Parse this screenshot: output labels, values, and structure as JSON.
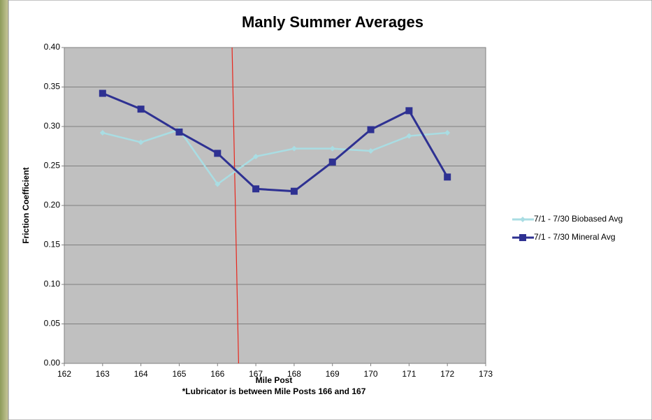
{
  "chart_data": {
    "type": "line",
    "title": "Manly Summer Averages",
    "x_label": "Mile Post",
    "note": "*Lubricator is between Mile Posts 166 and 167",
    "y_label": "Friction Coefficient",
    "x": [
      163,
      164,
      165,
      166,
      167,
      168,
      169,
      170,
      171,
      172
    ],
    "series": [
      {
        "name": "7/1 - 7/30 Biobased Avg",
        "color": "#a9dde3",
        "marker": "diamond",
        "values": [
          0.292,
          0.28,
          0.296,
          0.227,
          0.262,
          0.272,
          0.272,
          0.269,
          0.288,
          0.292
        ]
      },
      {
        "name": "7/1 - 7/30 Mineral Avg",
        "color": "#2e3192",
        "marker": "square",
        "values": [
          0.342,
          0.322,
          0.293,
          0.266,
          0.221,
          0.218,
          0.255,
          0.296,
          0.32,
          0.236
        ]
      }
    ],
    "marker_line": {
      "color": "#e8261c",
      "x": [
        166.38,
        166.55
      ],
      "y": [
        0.4,
        0.0
      ]
    },
    "xlim": [
      162,
      173
    ],
    "xticks": [
      162,
      163,
      164,
      165,
      166,
      167,
      168,
      169,
      170,
      171,
      172,
      173
    ],
    "ylim": [
      0,
      0.4
    ],
    "yticks": [
      {
        "value": 0,
        "label": "0.00"
      },
      {
        "value": 0.05,
        "label": "0.05"
      },
      {
        "value": 0.1,
        "label": "0.10"
      },
      {
        "value": 0.15,
        "label": "0.15"
      },
      {
        "value": 0.2,
        "label": "0.20"
      },
      {
        "value": 0.25,
        "label": "0.25"
      },
      {
        "value": 0.3,
        "label": "0.30"
      },
      {
        "value": 0.35,
        "label": "0.35"
      },
      {
        "value": 0.4,
        "label": "0.40"
      }
    ],
    "grid": true,
    "legend": "right",
    "plot_background": "#c0c0c0"
  }
}
